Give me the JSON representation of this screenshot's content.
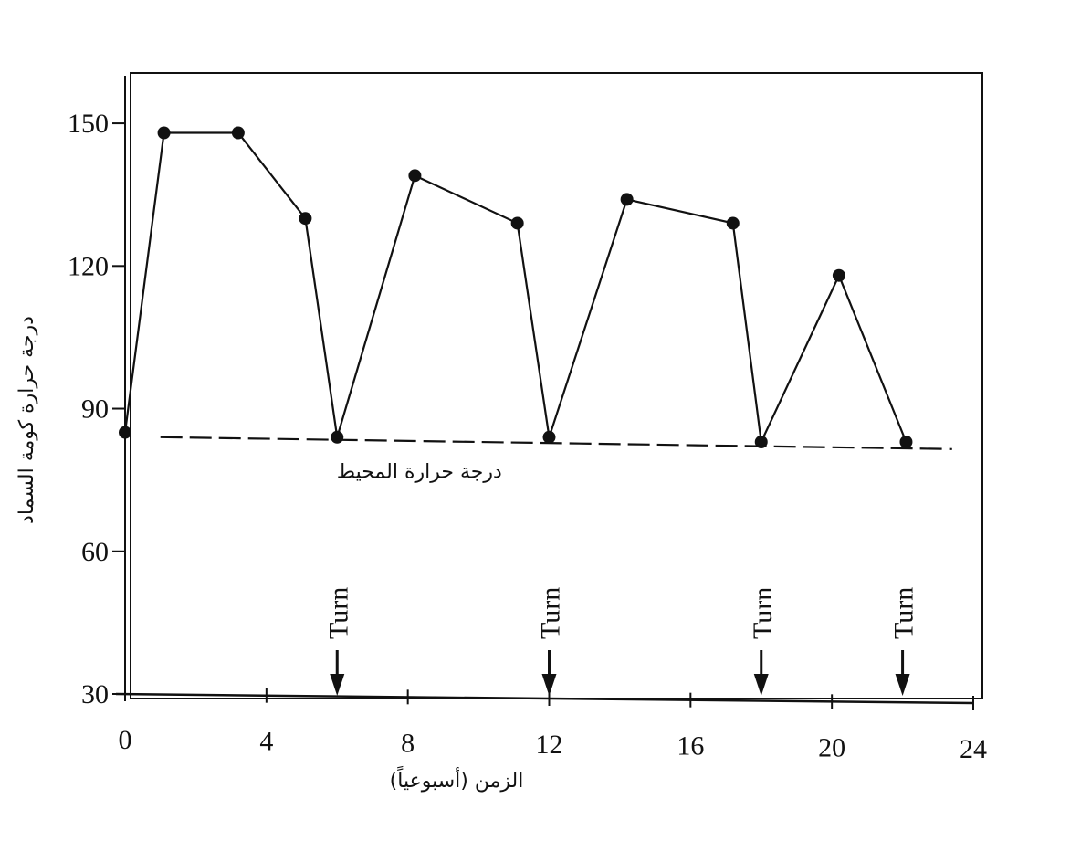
{
  "chart_data": {
    "type": "line",
    "y_label": "درجة حرارة كومة السماد",
    "x_label": "الزمن (أسبوعياً)",
    "xlim": [
      0,
      24
    ],
    "xticks": [
      0,
      4,
      8,
      12,
      16,
      20,
      24
    ],
    "ylim": [
      30,
      160
    ],
    "yticks": [
      30,
      60,
      90,
      120,
      150
    ],
    "series": [
      {
        "color": "#111111",
        "style": "solid",
        "markers": true,
        "x": [
          0,
          1.1,
          3.2,
          5.1,
          6,
          8.2,
          11.1,
          12,
          14.2,
          17.2,
          18,
          20.2,
          22.1
        ],
        "values": [
          85,
          148,
          148,
          130,
          84,
          139,
          129,
          84,
          134,
          129,
          83,
          118,
          83
        ]
      },
      {
        "name": "درجة حرارة المحيط",
        "color": "#111111",
        "style": "dashed",
        "markers": false,
        "x": [
          1,
          23.4
        ],
        "values": [
          84,
          81.5
        ]
      }
    ],
    "annotations": [
      {
        "text": "Turn",
        "x": 6
      },
      {
        "text": "Turn",
        "x": 12
      },
      {
        "text": "Turn",
        "x": 18
      },
      {
        "text": "Turn",
        "x": 22
      }
    ]
  }
}
